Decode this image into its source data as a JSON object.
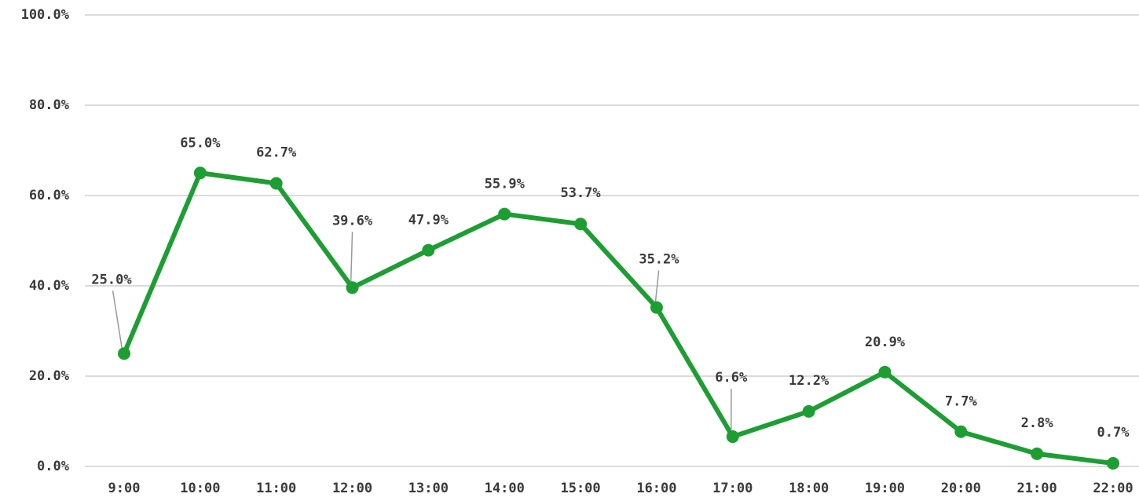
{
  "chart_data": {
    "type": "line",
    "categories": [
      "9:00",
      "10:00",
      "11:00",
      "12:00",
      "13:00",
      "14:00",
      "15:00",
      "16:00",
      "17:00",
      "18:00",
      "19:00",
      "20:00",
      "21:00",
      "22:00"
    ],
    "series": [
      {
        "color": "#1d9e33",
        "values": [
          25.0,
          65.0,
          62.7,
          39.6,
          47.9,
          55.9,
          53.7,
          35.2,
          6.6,
          12.2,
          20.9,
          7.7,
          2.8,
          0.7
        ],
        "value_labels": [
          "25.0%",
          "65.0%",
          "62.7%",
          "39.6%",
          "47.9%",
          "55.9%",
          "53.7%",
          "35.2%",
          "6.6%",
          "12.2%",
          "20.9%",
          "7.7%",
          "2.8%",
          "0.7%"
        ]
      }
    ],
    "ylim": [
      0,
      100
    ],
    "yticks": [
      {
        "value": 0,
        "label": "0.0%"
      },
      {
        "value": 20,
        "label": "20.0%"
      },
      {
        "value": 40,
        "label": "40.0%"
      },
      {
        "value": 60,
        "label": "60.0%"
      },
      {
        "value": 80,
        "label": "80.0%"
      },
      {
        "value": 100,
        "label": "100.0%"
      }
    ],
    "grid": true
  }
}
